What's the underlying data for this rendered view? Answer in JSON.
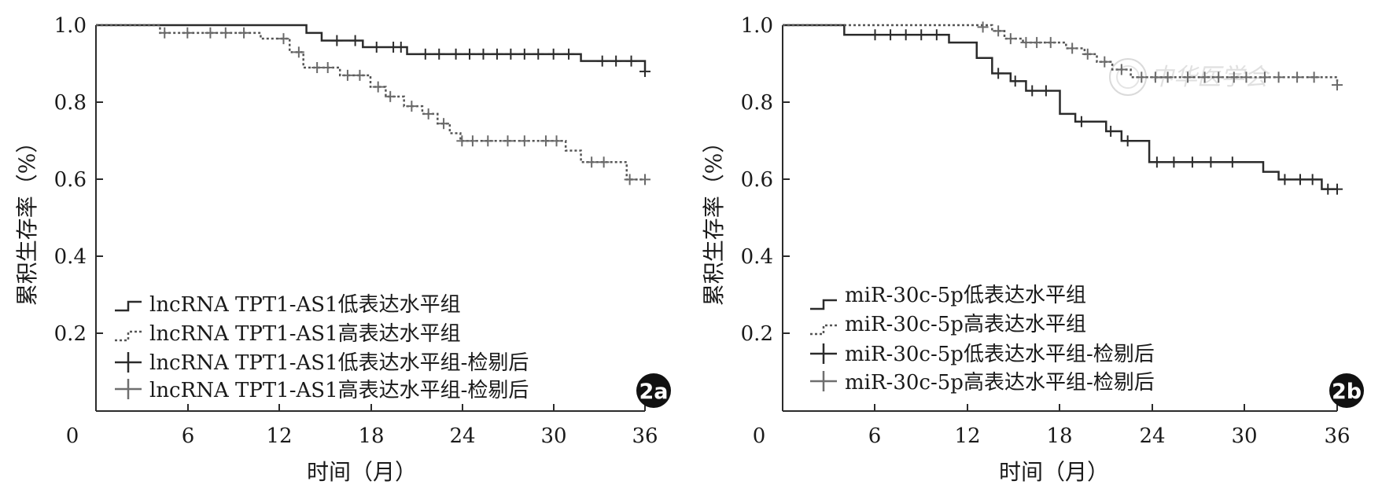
{
  "chart_data": [
    {
      "type": "line",
      "panel_label": "2a",
      "xlabel": "时间（月）",
      "ylabel": "累积生存率（%）",
      "xticks": [
        0,
        6,
        12,
        18,
        24,
        30,
        36
      ],
      "yticks": [
        "0.2",
        "0.4",
        "0.6",
        "0.8",
        "1.0"
      ],
      "xlim": [
        0,
        36
      ],
      "ylim": [
        0,
        1.0
      ],
      "grid": false,
      "legend_position": "lower-left",
      "legend": [
        {
          "label": "lncRNA TPT1-AS1低表达水平组",
          "symbol": "solid-step"
        },
        {
          "label": "lncRNA TPT1-AS1高表达水平组",
          "symbol": "dotted-step"
        },
        {
          "label": "lncRNA TPT1-AS1低表达水平组-检剔后",
          "symbol": "censor-dark"
        },
        {
          "label": "lncRNA TPT1-AS1高表达水平组-检剔后",
          "symbol": "censor-gray"
        }
      ],
      "series": [
        {
          "name": "lncRNA TPT1-AS1低表达水平组",
          "style": "solid",
          "steps": [
            [
              0,
              1.0
            ],
            [
              13.8,
              0.98
            ],
            [
              14.8,
              0.96
            ],
            [
              17.5,
              0.943
            ],
            [
              20.4,
              0.925
            ],
            [
              31.8,
              0.907
            ],
            [
              36,
              0.88
            ]
          ],
          "censored": [
            [
              15.8,
              0.96
            ],
            [
              17.0,
              0.96
            ],
            [
              18.4,
              0.943
            ],
            [
              19.5,
              0.943
            ],
            [
              20.0,
              0.943
            ],
            [
              21.6,
              0.925
            ],
            [
              22.5,
              0.925
            ],
            [
              23.6,
              0.925
            ],
            [
              24.5,
              0.925
            ],
            [
              25.4,
              0.925
            ],
            [
              26.3,
              0.925
            ],
            [
              27.2,
              0.925
            ],
            [
              28.1,
              0.925
            ],
            [
              29.0,
              0.925
            ],
            [
              30.0,
              0.925
            ],
            [
              31.0,
              0.925
            ],
            [
              33.2,
              0.907
            ],
            [
              34.1,
              0.907
            ],
            [
              35.1,
              0.907
            ],
            [
              36,
              0.88
            ]
          ]
        },
        {
          "name": "lncRNA TPT1-AS1高表达水平组",
          "style": "dotted",
          "steps": [
            [
              0,
              1.0
            ],
            [
              4.2,
              0.98
            ],
            [
              10.8,
              0.965
            ],
            [
              12.7,
              0.93
            ],
            [
              13.6,
              0.89
            ],
            [
              16.0,
              0.87
            ],
            [
              18.0,
              0.84
            ],
            [
              19.0,
              0.815
            ],
            [
              20.2,
              0.79
            ],
            [
              21.4,
              0.77
            ],
            [
              22.4,
              0.745
            ],
            [
              23.2,
              0.72
            ],
            [
              23.9,
              0.7
            ],
            [
              30.8,
              0.675
            ],
            [
              31.8,
              0.645
            ],
            [
              34.8,
              0.6
            ],
            [
              36,
              0.6
            ]
          ],
          "censored": [
            [
              4.5,
              0.98
            ],
            [
              6.0,
              0.98
            ],
            [
              7.5,
              0.98
            ],
            [
              8.5,
              0.98
            ],
            [
              9.7,
              0.98
            ],
            [
              12.3,
              0.965
            ],
            [
              13.3,
              0.93
            ],
            [
              14.5,
              0.89
            ],
            [
              15.2,
              0.89
            ],
            [
              16.5,
              0.87
            ],
            [
              17.3,
              0.87
            ],
            [
              18.5,
              0.84
            ],
            [
              19.3,
              0.815
            ],
            [
              20.7,
              0.79
            ],
            [
              21.8,
              0.77
            ],
            [
              22.8,
              0.745
            ],
            [
              24.0,
              0.7
            ],
            [
              24.7,
              0.7
            ],
            [
              25.7,
              0.7
            ],
            [
              27.0,
              0.7
            ],
            [
              28.1,
              0.7
            ],
            [
              29.5,
              0.7
            ],
            [
              30.2,
              0.7
            ],
            [
              32.5,
              0.645
            ],
            [
              33.3,
              0.645
            ],
            [
              35.0,
              0.6
            ],
            [
              36,
              0.6
            ]
          ]
        }
      ]
    },
    {
      "type": "line",
      "panel_label": "2b",
      "xlabel": "时间（月）",
      "ylabel": "累积生存率（%）",
      "xticks": [
        0,
        6,
        12,
        18,
        24,
        30,
        36
      ],
      "yticks": [
        "0.2",
        "0.4",
        "0.6",
        "0.8",
        "1.0"
      ],
      "xlim": [
        0,
        36
      ],
      "ylim": [
        0,
        1.0
      ],
      "grid": false,
      "legend_position": "lower-left",
      "legend": [
        {
          "label": "miR-30c-5p低表达水平组",
          "symbol": "solid-step"
        },
        {
          "label": "miR-30c-5p高表达水平组",
          "symbol": "dotted-step"
        },
        {
          "label": "miR-30c-5p低表达水平组-检剔后",
          "symbol": "censor-dark"
        },
        {
          "label": "miR-30c-5p高表达水平组-检剔后",
          "symbol": "censor-gray"
        }
      ],
      "series": [
        {
          "name": "miR-30c-5p低表达水平组",
          "style": "solid",
          "steps": [
            [
              0,
              1.0
            ],
            [
              4.0,
              0.975
            ],
            [
              10.8,
              0.955
            ],
            [
              12.6,
              0.915
            ],
            [
              13.6,
              0.875
            ],
            [
              14.8,
              0.855
            ],
            [
              15.8,
              0.83
            ],
            [
              18.0,
              0.77
            ],
            [
              19.0,
              0.75
            ],
            [
              21.0,
              0.725
            ],
            [
              22.0,
              0.7
            ],
            [
              23.8,
              0.645
            ],
            [
              31.2,
              0.62
            ],
            [
              32.2,
              0.6
            ],
            [
              35.0,
              0.575
            ],
            [
              36,
              0.575
            ]
          ],
          "censored": [
            [
              6.0,
              0.975
            ],
            [
              7.0,
              0.975
            ],
            [
              8.0,
              0.975
            ],
            [
              9.0,
              0.975
            ],
            [
              10.0,
              0.975
            ],
            [
              14.0,
              0.875
            ],
            [
              15.1,
              0.855
            ],
            [
              16.2,
              0.83
            ],
            [
              17.1,
              0.83
            ],
            [
              19.4,
              0.75
            ],
            [
              21.3,
              0.725
            ],
            [
              22.4,
              0.7
            ],
            [
              24.3,
              0.645
            ],
            [
              25.4,
              0.645
            ],
            [
              26.6,
              0.645
            ],
            [
              27.8,
              0.645
            ],
            [
              29.2,
              0.645
            ],
            [
              32.6,
              0.6
            ],
            [
              33.6,
              0.6
            ],
            [
              34.4,
              0.6
            ],
            [
              35.4,
              0.575
            ],
            [
              36,
              0.575
            ]
          ]
        },
        {
          "name": "miR-30c-5p高表达水平组",
          "style": "dotted",
          "steps": [
            [
              0,
              1.0
            ],
            [
              13.6,
              0.985
            ],
            [
              14.4,
              0.965
            ],
            [
              15.6,
              0.955
            ],
            [
              18.4,
              0.94
            ],
            [
              19.6,
              0.925
            ],
            [
              20.4,
              0.905
            ],
            [
              21.4,
              0.885
            ],
            [
              22.6,
              0.865
            ],
            [
              36,
              0.845
            ]
          ],
          "censored": [
            [
              13.0,
              0.995
            ],
            [
              14.0,
              0.985
            ],
            [
              14.8,
              0.965
            ],
            [
              15.8,
              0.955
            ],
            [
              16.5,
              0.955
            ],
            [
              17.4,
              0.955
            ],
            [
              18.8,
              0.94
            ],
            [
              19.8,
              0.925
            ],
            [
              20.9,
              0.905
            ],
            [
              22.0,
              0.885
            ],
            [
              23.3,
              0.865
            ],
            [
              24.2,
              0.865
            ],
            [
              25.0,
              0.865
            ],
            [
              26.3,
              0.865
            ],
            [
              27.4,
              0.865
            ],
            [
              28.3,
              0.865
            ],
            [
              29.3,
              0.865
            ],
            [
              30.1,
              0.865
            ],
            [
              31.3,
              0.865
            ],
            [
              32.2,
              0.865
            ],
            [
              33.4,
              0.865
            ],
            [
              34.5,
              0.865
            ],
            [
              36,
              0.845
            ]
          ]
        }
      ]
    }
  ]
}
